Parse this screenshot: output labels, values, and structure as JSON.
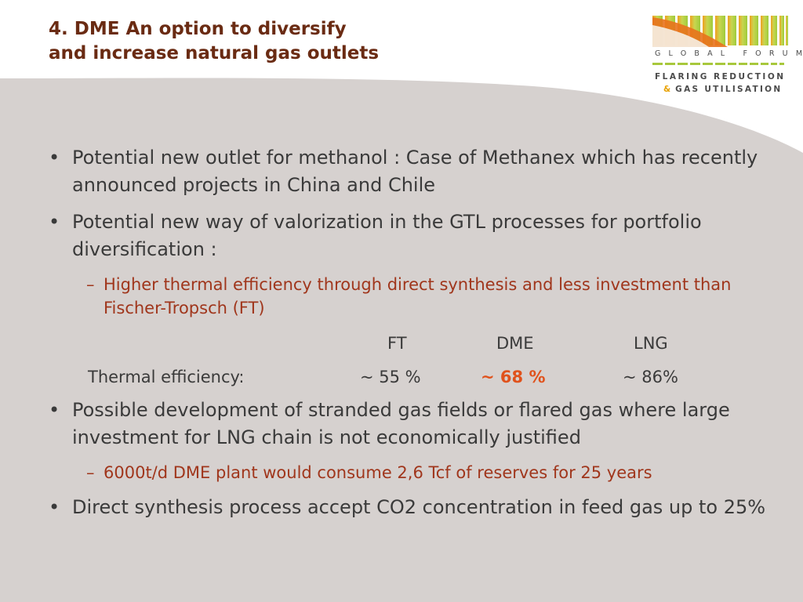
{
  "title": {
    "line1": "4. DME An option to diversify",
    "line2": "and increase natural gas outlets"
  },
  "logo": {
    "line1": "GLOBAL FORUM",
    "line2": "FLARING REDUCTION",
    "amp": "&",
    "line3": "GAS UTILISATION"
  },
  "bullets": [
    {
      "text": "Potential new outlet for methanol : Case of Methanex which has recently announced projects in China and Chile"
    },
    {
      "text": "Potential new way of valorization in the GTL processes for portfolio diversification :"
    }
  ],
  "sub1": "Higher thermal efficiency through direct synthesis and less investment than Fischer-Tropsch (FT)",
  "table": {
    "headers": [
      "FT",
      "DME",
      "LNG"
    ],
    "row_label": "Thermal efficiency:",
    "values": [
      "~ 55 %",
      "~ 68 %",
      "~ 86%"
    ]
  },
  "bullets2": [
    {
      "text": "Possible development of stranded gas fields or flared gas where large investment for  LNG chain is not economically justified"
    }
  ],
  "sub2": "6000t/d DME plant would consume 2,6 Tcf of reserves for 25 years",
  "bullets3": [
    {
      "text": "Direct synthesis process accept CO2 concentration in feed gas up to 25%"
    }
  ],
  "glyphs": {
    "bullet": "•",
    "dash": "–"
  },
  "colors": {
    "background_shape": "#d6d1cf",
    "title": "#6a2b13",
    "sub_bullet": "#a0361c",
    "highlight": "#e0521c",
    "body_text": "#3a3a3a"
  }
}
